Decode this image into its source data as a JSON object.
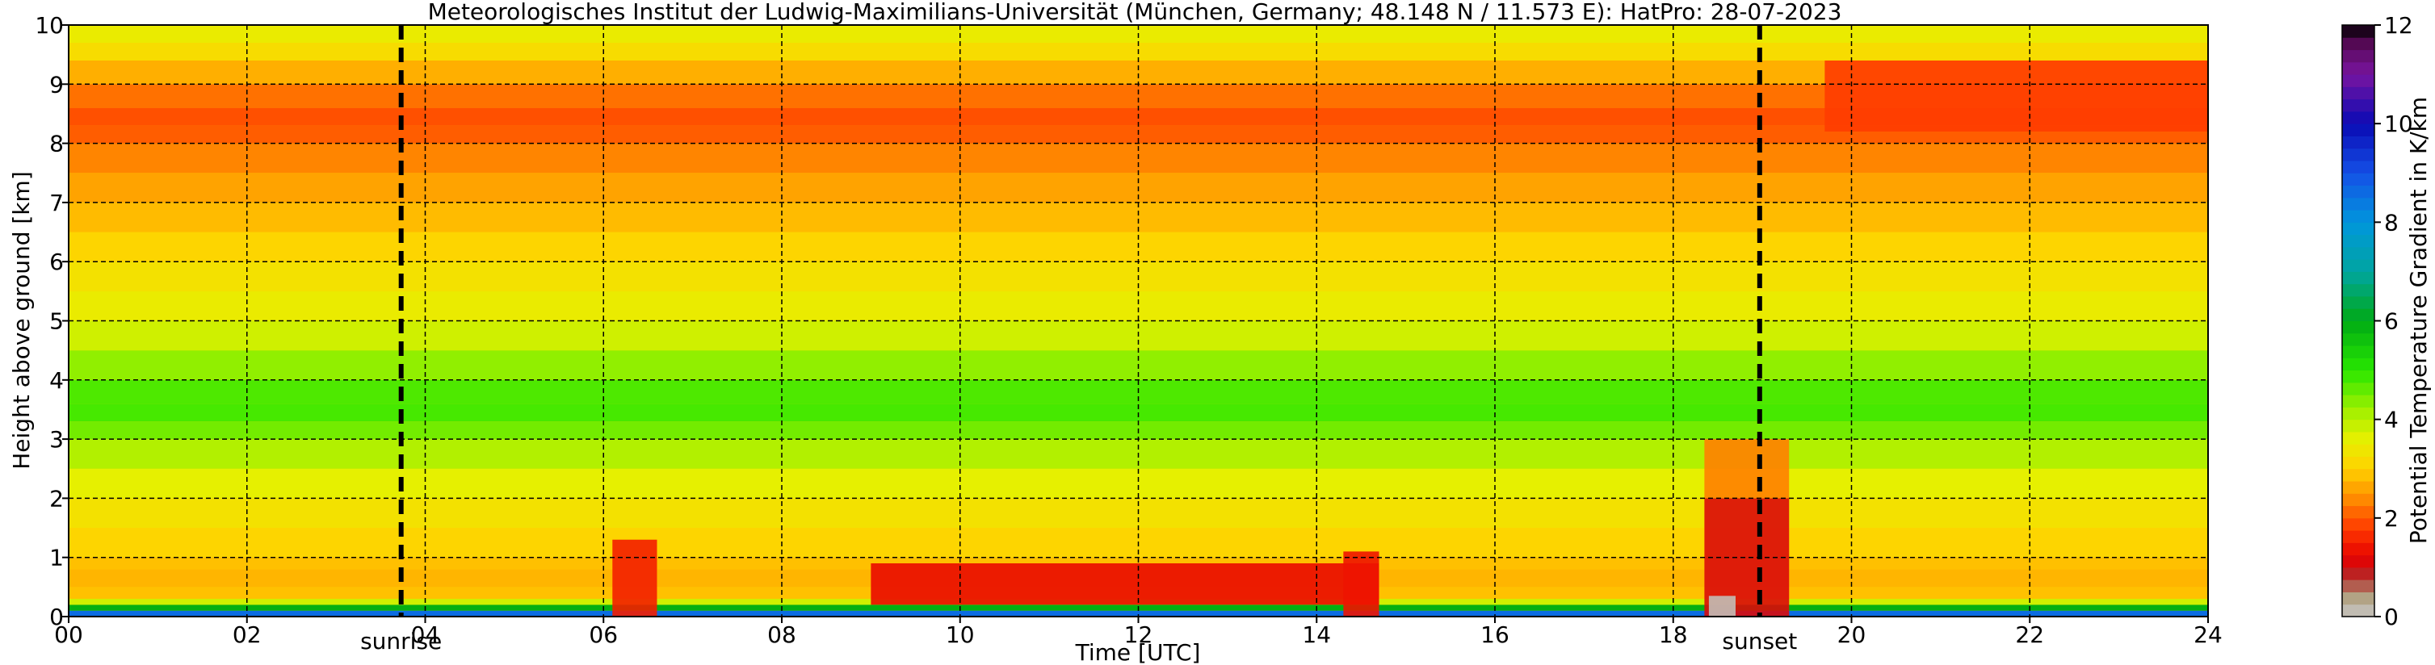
{
  "chart_data": {
    "type": "heatmap",
    "title": "Meteorologisches Institut der Ludwig-Maximilians-Universität (München, Germany; 48.148 N / 11.573 E):    HatPro: 28-07-2023",
    "xlabel": "Time [UTC]",
    "ylabel": "Height above ground [km]",
    "colorbar_label": "Potential Temperature Gradient in K/km",
    "xlim": [
      0,
      24
    ],
    "ylim": [
      0,
      10
    ],
    "x_ticks": [
      0,
      2,
      4,
      6,
      8,
      10,
      12,
      14,
      16,
      18,
      20,
      22,
      24
    ],
    "x_tick_labels": [
      "00",
      "02",
      "04",
      "06",
      "08",
      "10",
      "12",
      "14",
      "16",
      "18",
      "20",
      "22",
      "24"
    ],
    "y_ticks": [
      0,
      1,
      2,
      3,
      4,
      5,
      6,
      7,
      8,
      9,
      10
    ],
    "y_tick_labels": [
      "0",
      "1",
      "2",
      "3",
      "4",
      "5",
      "6",
      "7",
      "8",
      "9",
      "10"
    ],
    "colorbar_range": [
      0,
      12
    ],
    "colorbar_ticks": [
      0,
      2,
      4,
      6,
      8,
      10,
      12
    ],
    "colorbar_tick_labels": [
      "0",
      "2",
      "4",
      "6",
      "8",
      "10",
      "12"
    ],
    "colormap_stops": [
      {
        "value": 0.0,
        "color": "#c8c8c8"
      },
      {
        "value": 0.4,
        "color": "#b0a080"
      },
      {
        "value": 0.8,
        "color": "#b42828"
      },
      {
        "value": 1.2,
        "color": "#e60000"
      },
      {
        "value": 1.8,
        "color": "#ff3c00"
      },
      {
        "value": 2.4,
        "color": "#ff8c00"
      },
      {
        "value": 3.0,
        "color": "#ffd200"
      },
      {
        "value": 3.6,
        "color": "#e6f000"
      },
      {
        "value": 4.2,
        "color": "#a0f000"
      },
      {
        "value": 5.0,
        "color": "#28e600"
      },
      {
        "value": 6.0,
        "color": "#00aa14"
      },
      {
        "value": 7.0,
        "color": "#00a5a0"
      },
      {
        "value": 8.0,
        "color": "#0096dc"
      },
      {
        "value": 9.0,
        "color": "#1450e6"
      },
      {
        "value": 10.0,
        "color": "#0a0ab4"
      },
      {
        "value": 11.0,
        "color": "#7814a0"
      },
      {
        "value": 11.6,
        "color": "#5a0a5a"
      },
      {
        "value": 12.0,
        "color": "#000000"
      }
    ],
    "grid": true,
    "markers": [
      {
        "label": "sunrise",
        "x": 3.73
      },
      {
        "label": "sunset",
        "x": 18.97
      }
    ],
    "profile_heights_km": [
      0.0,
      0.1,
      0.2,
      0.3,
      0.5,
      0.8,
      1.0,
      1.5,
      2.0,
      2.5,
      3.0,
      3.3,
      3.6,
      4.0,
      4.5,
      5.0,
      5.5,
      6.0,
      6.5,
      7.0,
      7.5,
      8.0,
      8.3,
      8.6,
      9.0,
      9.4,
      9.7,
      10.0
    ],
    "base_profile_gradient": [
      10.0,
      7.2,
      4.6,
      3.0,
      2.7,
      2.8,
      2.9,
      3.2,
      3.4,
      3.8,
      4.3,
      4.7,
      4.9,
      4.6,
      4.0,
      3.6,
      3.4,
      3.2,
      2.9,
      2.7,
      2.5,
      2.2,
      1.9,
      2.0,
      2.4,
      3.0,
      3.4,
      3.6
    ],
    "features": [
      {
        "t0": 9.0,
        "t1": 14.7,
        "z0": 0.2,
        "z1": 0.9,
        "value": 1.3
      },
      {
        "t0": 6.1,
        "t1": 6.6,
        "z0": 0.0,
        "z1": 1.3,
        "value": 1.5
      },
      {
        "t0": 14.3,
        "t1": 14.7,
        "z0": 0.0,
        "z1": 1.1,
        "value": 1.4
      },
      {
        "t0": 18.35,
        "t1": 19.3,
        "z0": 0.0,
        "z1": 2.0,
        "value": 1.1
      },
      {
        "t0": 18.35,
        "t1": 19.3,
        "z0": 2.0,
        "z1": 3.0,
        "value": 2.3
      },
      {
        "t0": 19.7,
        "t1": 24.0,
        "z0": 8.2,
        "z1": 9.4,
        "value": 1.8
      },
      {
        "t0": 18.4,
        "t1": 18.7,
        "z0": 0.0,
        "z1": 0.35,
        "value": 0.1
      }
    ]
  }
}
